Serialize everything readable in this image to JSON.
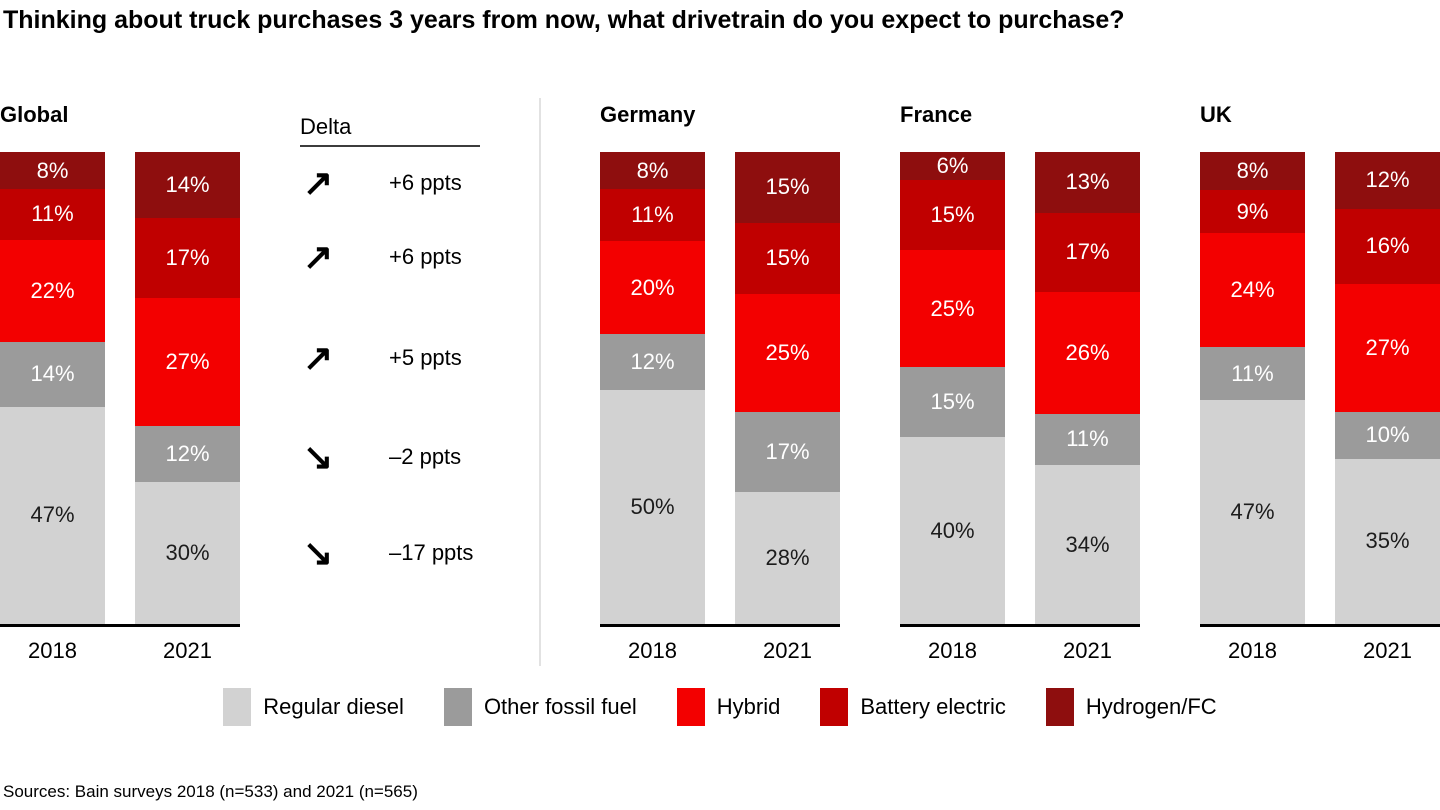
{
  "title": "Thinking about truck purchases 3 years from now, what drivetrain do you expect to purchase?",
  "source": "Sources: Bain surveys 2018 (n=533) and 2021 (n=565)",
  "legend": [
    {
      "label": "Regular diesel",
      "color": "#d2d2d2"
    },
    {
      "label": "Other fossil fuel",
      "color": "#9b9b9b"
    },
    {
      "label": "Hybrid",
      "color": "#f30000"
    },
    {
      "label": "Battery electric",
      "color": "#c00000"
    },
    {
      "label": "Hydrogen/FC",
      "color": "#8e0e0e"
    }
  ],
  "delta": {
    "header": "Delta",
    "applies_to": "Global",
    "rows": [
      {
        "series": "Hydrogen/FC",
        "direction": "up",
        "label": "+6 ppts"
      },
      {
        "series": "Battery electric",
        "direction": "up",
        "label": "+6 ppts"
      },
      {
        "series": "Hybrid",
        "direction": "up",
        "label": "+5 ppts"
      },
      {
        "series": "Other fossil fuel",
        "direction": "down",
        "label": "–2 ppts"
      },
      {
        "series": "Regular diesel",
        "direction": "down",
        "label": "–17 ppts"
      }
    ]
  },
  "chart_data": {
    "type": "bar",
    "stacked": true,
    "value_unit": "%",
    "categories": [
      "2018",
      "2021"
    ],
    "series": [
      "Regular diesel",
      "Other fossil fuel",
      "Hybrid",
      "Battery electric",
      "Hydrogen/FC"
    ],
    "series_order": "bottom_to_top",
    "legend_position": "bottom",
    "groups": [
      {
        "name": "Global",
        "bars": [
          {
            "year": "2018",
            "values": [
              47,
              14,
              22,
              11,
              8
            ]
          },
          {
            "year": "2021",
            "values": [
              30,
              12,
              27,
              17,
              14
            ]
          }
        ]
      },
      {
        "name": "Germany",
        "bars": [
          {
            "year": "2018",
            "values": [
              50,
              12,
              20,
              11,
              8
            ]
          },
          {
            "year": "2021",
            "values": [
              28,
              17,
              25,
              15,
              15
            ]
          }
        ]
      },
      {
        "name": "France",
        "bars": [
          {
            "year": "2018",
            "values": [
              40,
              15,
              25,
              15,
              6
            ]
          },
          {
            "year": "2021",
            "values": [
              34,
              11,
              26,
              17,
              13
            ]
          }
        ]
      },
      {
        "name": "UK",
        "bars": [
          {
            "year": "2018",
            "values": [
              47,
              11,
              24,
              9,
              8
            ]
          },
          {
            "year": "2021",
            "values": [
              35,
              10,
              27,
              16,
              12
            ]
          }
        ]
      }
    ]
  }
}
